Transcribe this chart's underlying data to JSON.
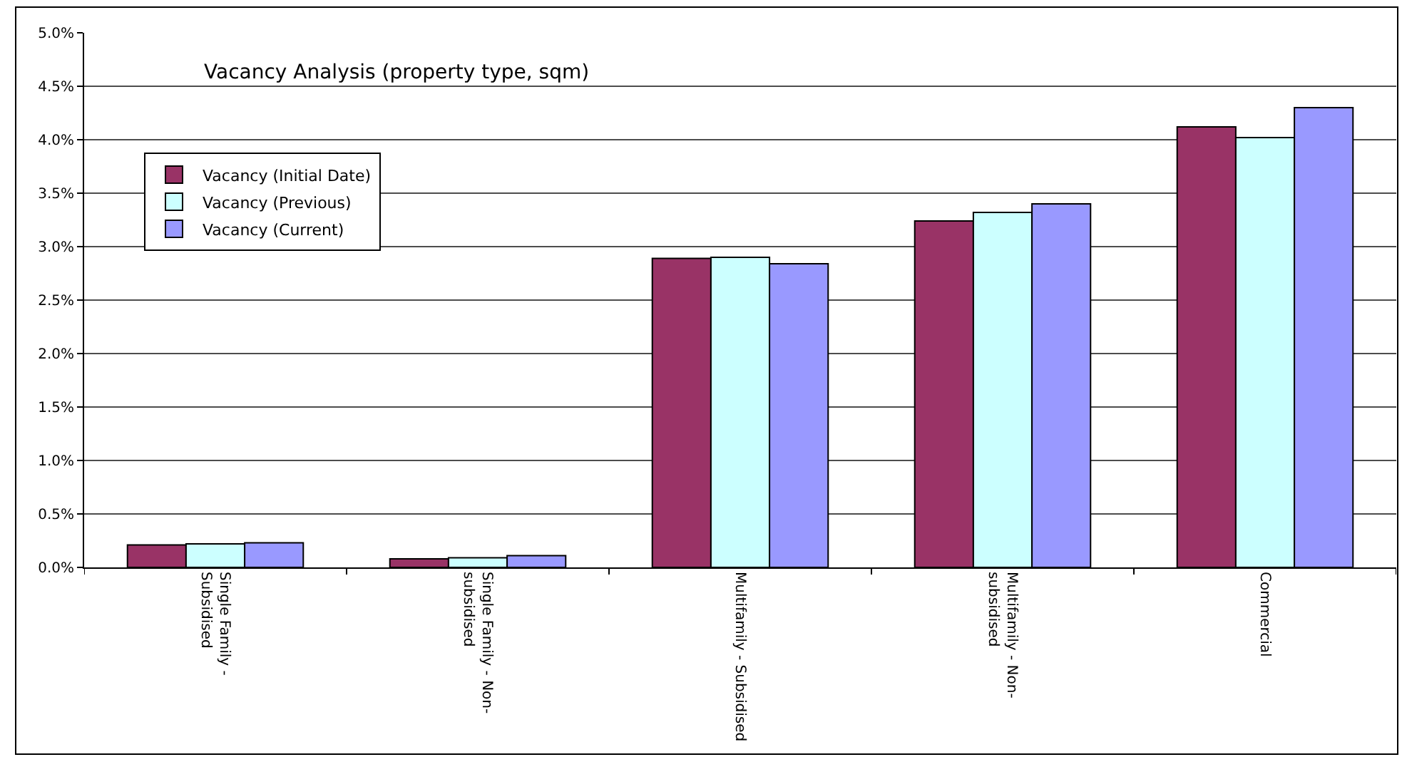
{
  "chart_data": {
    "type": "bar",
    "title": "Vacancy Analysis (property type, sqm)",
    "categories": [
      "Single Family - Subsidised",
      "Single Family - Non-subsidised",
      "Multifamily - Subsidised",
      "Multifamily - Non-subsidised",
      "Commercial"
    ],
    "series": [
      {
        "name": "Vacancy (Initial Date)",
        "color": "#993366",
        "values": [
          0.21,
          0.08,
          2.89,
          3.24,
          4.12
        ]
      },
      {
        "name": "Vacancy (Previous)",
        "color": "#ccffff",
        "values": [
          0.22,
          0.09,
          2.9,
          3.32,
          4.02
        ]
      },
      {
        "name": "Vacancy (Current)",
        "color": "#9999ff",
        "values": [
          0.23,
          0.11,
          2.84,
          3.4,
          4.3
        ]
      }
    ],
    "ylim": [
      0,
      5
    ],
    "yticks": [
      {
        "value": 0,
        "label": "0.0%"
      },
      {
        "value": 0.5,
        "label": "0.5%"
      },
      {
        "value": 1,
        "label": "1.0%"
      },
      {
        "value": 1.5,
        "label": "1.5%"
      },
      {
        "value": 2,
        "label": "2.0%"
      },
      {
        "value": 2.5,
        "label": "2.5%"
      },
      {
        "value": 3,
        "label": "3.0%"
      },
      {
        "value": 3.5,
        "label": "3.5%"
      },
      {
        "value": 4,
        "label": "4.0%"
      },
      {
        "value": 4.5,
        "label": "4.5%"
      },
      {
        "value": 5,
        "label": "5.0%"
      }
    ],
    "grid": "y",
    "legend": "top left"
  }
}
